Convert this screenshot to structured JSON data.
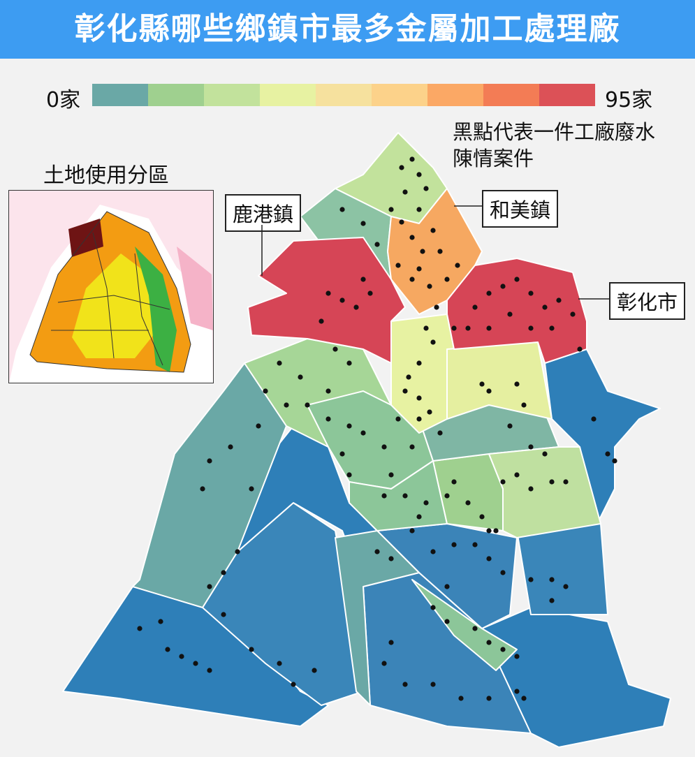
{
  "title": "彰化縣哪些鄉鎮市最多金屬加工處理廠",
  "legend": {
    "min_label": "0家",
    "max_label": "95家",
    "colors": [
      "#6aa8a6",
      "#9fd08f",
      "#c2e29c",
      "#e7f2a2",
      "#f6e19e",
      "#fcd28a",
      "#fba865",
      "#f37c55",
      "#dc5157"
    ]
  },
  "note_lines": [
    "黑點代表一件工廠廢水",
    "陳情案件"
  ],
  "inset_label": "土地使用分區",
  "callouts": {
    "lugang": "鹿港鎮",
    "hemei": "和美鎮",
    "changhua": "彰化市"
  },
  "colors": {
    "title_bg": "#3d9cf2",
    "blue": "#2e7fb8",
    "teal": "#6aa8a6",
    "green": "#8cc699",
    "light_green": "#bfe0a0",
    "yellow": "#e7f2a2",
    "orange": "#f6a861",
    "red": "#d64556"
  }
}
